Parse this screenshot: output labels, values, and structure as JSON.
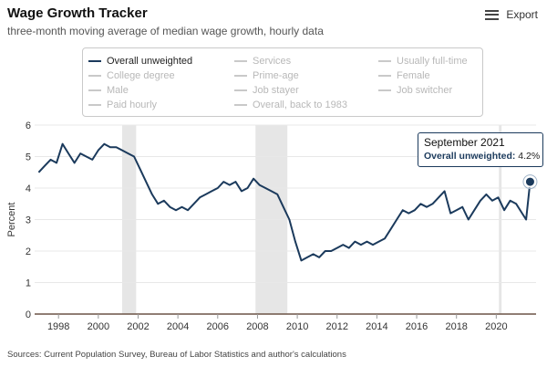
{
  "header": {
    "title": "Wage Growth Tracker",
    "subtitle": "three-month moving average of median wage growth, hourly data",
    "export_label": "Export"
  },
  "legend": {
    "items": [
      {
        "label": "Overall unweighted",
        "active": true
      },
      {
        "label": "Services",
        "active": false
      },
      {
        "label": "Usually full-time",
        "active": false
      },
      {
        "label": "College degree",
        "active": false
      },
      {
        "label": "Prime-age",
        "active": false
      },
      {
        "label": "Female",
        "active": false
      },
      {
        "label": "Male",
        "active": false
      },
      {
        "label": "Job stayer",
        "active": false
      },
      {
        "label": "Job switcher",
        "active": false
      },
      {
        "label": "Paid hourly",
        "active": false
      },
      {
        "label": "Overall, back to 1983",
        "active": false
      }
    ]
  },
  "tooltip": {
    "title": "September 2021",
    "series": "Overall unweighted",
    "value": "4.2%"
  },
  "source": "Sources: Current Population Survey, Bureau of Labor Statistics and author's calculations",
  "chart_data": {
    "type": "line",
    "ylabel": "Percent",
    "xlabel": "",
    "ylim": [
      0,
      6
    ],
    "xlim": [
      1996.8,
      2022.0
    ],
    "yticks": [
      0,
      1,
      2,
      3,
      4,
      5,
      6
    ],
    "xticks": [
      1998,
      2000,
      2002,
      2004,
      2006,
      2008,
      2010,
      2012,
      2014,
      2016,
      2018,
      2020
    ],
    "grid": "horizontal",
    "line_color": "#1b3a5c",
    "recessions": [
      [
        2001.2,
        2001.9
      ],
      [
        2007.9,
        2009.5
      ]
    ],
    "vertical_marker": 2020.2,
    "series": [
      {
        "name": "Overall unweighted",
        "x": [
          1997.0,
          1997.3,
          1997.6,
          1997.9,
          1998.2,
          1998.5,
          1998.8,
          1999.1,
          1999.4,
          1999.7,
          2000.0,
          2000.3,
          2000.6,
          2000.9,
          2001.2,
          2001.5,
          2001.8,
          2002.1,
          2002.4,
          2002.7,
          2003.0,
          2003.3,
          2003.6,
          2003.9,
          2004.2,
          2004.5,
          2004.8,
          2005.1,
          2005.4,
          2005.7,
          2006.0,
          2006.3,
          2006.6,
          2006.9,
          2007.2,
          2007.5,
          2007.8,
          2008.1,
          2008.4,
          2008.7,
          2009.0,
          2009.3,
          2009.6,
          2009.9,
          2010.2,
          2010.5,
          2010.8,
          2011.1,
          2011.4,
          2011.7,
          2012.0,
          2012.3,
          2012.6,
          2012.9,
          2013.2,
          2013.5,
          2013.8,
          2014.1,
          2014.4,
          2014.7,
          2015.0,
          2015.3,
          2015.6,
          2015.9,
          2016.2,
          2016.5,
          2016.8,
          2017.1,
          2017.4,
          2017.7,
          2018.0,
          2018.3,
          2018.6,
          2018.9,
          2019.2,
          2019.5,
          2019.8,
          2020.1,
          2020.4,
          2020.7,
          2021.0,
          2021.3,
          2021.5,
          2021.7
        ],
        "y": [
          4.5,
          4.7,
          4.9,
          4.8,
          5.4,
          5.1,
          4.8,
          5.1,
          5.0,
          4.9,
          5.2,
          5.4,
          5.3,
          5.3,
          5.2,
          5.1,
          5.0,
          4.6,
          4.2,
          3.8,
          3.5,
          3.6,
          3.4,
          3.3,
          3.4,
          3.3,
          3.5,
          3.7,
          3.8,
          3.9,
          4.0,
          4.2,
          4.1,
          4.2,
          3.9,
          4.0,
          4.3,
          4.1,
          4.0,
          3.9,
          3.8,
          3.4,
          3.0,
          2.3,
          1.7,
          1.8,
          1.9,
          1.8,
          2.0,
          2.0,
          2.1,
          2.2,
          2.1,
          2.3,
          2.2,
          2.3,
          2.2,
          2.3,
          2.4,
          2.7,
          3.0,
          3.3,
          3.2,
          3.3,
          3.5,
          3.4,
          3.5,
          3.7,
          3.9,
          3.2,
          3.3,
          3.4,
          3.0,
          3.3,
          3.6,
          3.8,
          3.6,
          3.7,
          3.3,
          3.6,
          3.5,
          3.2,
          3.0,
          4.2
        ]
      }
    ]
  }
}
